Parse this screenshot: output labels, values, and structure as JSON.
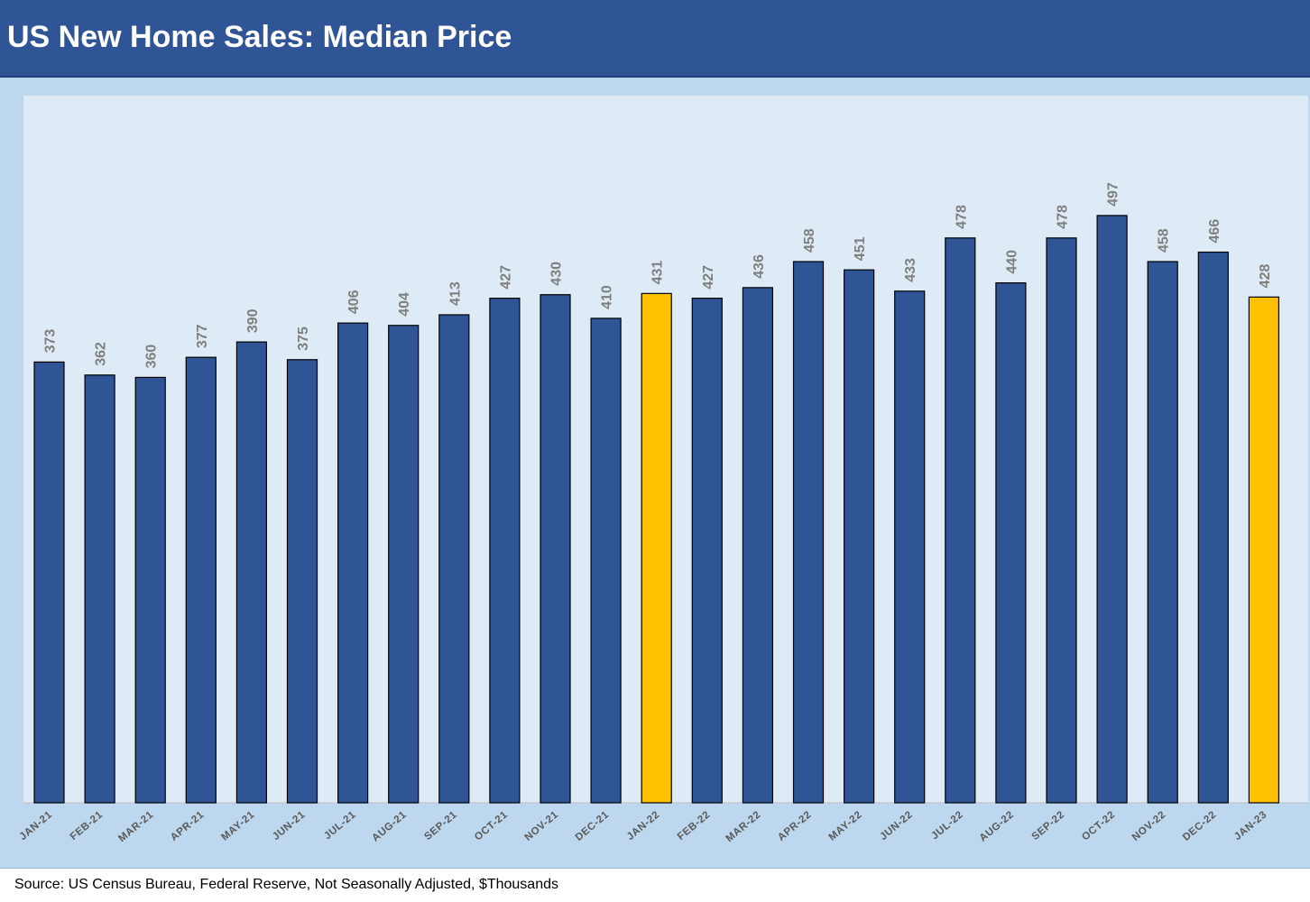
{
  "header": {
    "title": "US New Home Sales: Median Price"
  },
  "footer": {
    "source": "Source: US Census Bureau, Federal Reserve, Not Seasonally Adjusted, $Thousands"
  },
  "colors": {
    "bar_default": "#2f5597",
    "bar_highlight": "#ffc000",
    "label": "#7f7f7f",
    "axis_label": "#595959"
  },
  "chart_data": {
    "type": "bar",
    "title": "US New Home Sales: Median Price",
    "xlabel": "",
    "ylabel": "",
    "ylim": [
      0,
      550
    ],
    "grid": false,
    "categories": [
      "JAN-21",
      "FEB-21",
      "MAR-21",
      "APR-21",
      "MAY-21",
      "JUN-21",
      "JUL-21",
      "AUG-21",
      "SEP-21",
      "OCT-21",
      "NOV-21",
      "DEC-21",
      "JAN-22",
      "FEB-22",
      "MAR-22",
      "APR-22",
      "MAY-22",
      "JUN-22",
      "JUL-22",
      "AUG-22",
      "SEP-22",
      "OCT-22",
      "NOV-22",
      "DEC-22",
      "JAN-23"
    ],
    "values": [
      373,
      362,
      360,
      377,
      390,
      375,
      406,
      404,
      413,
      427,
      430,
      410,
      431,
      427,
      436,
      458,
      451,
      433,
      478,
      440,
      478,
      497,
      458,
      466,
      428
    ],
    "highlighted_categories": [
      "JAN-22",
      "JAN-23"
    ]
  }
}
